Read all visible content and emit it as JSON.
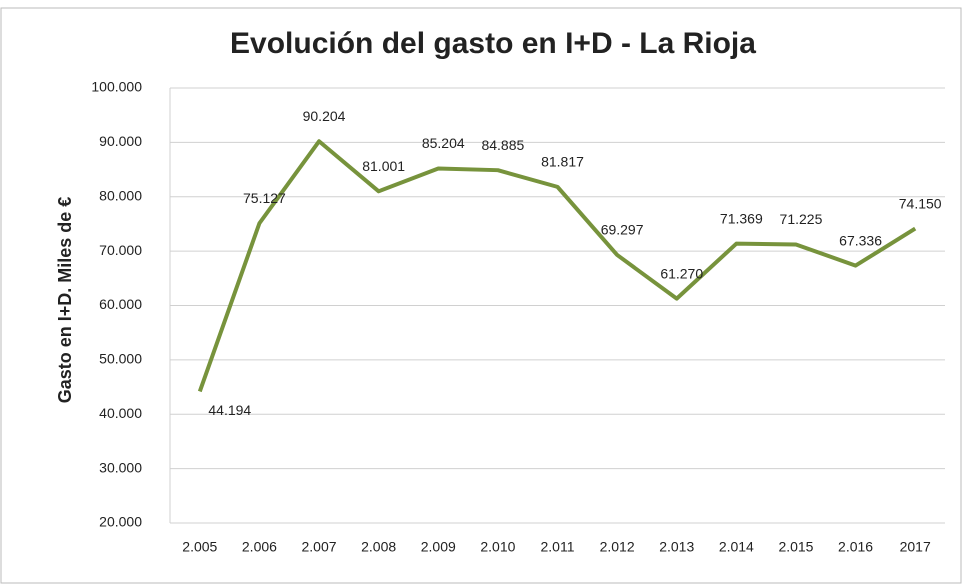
{
  "chart_data": {
    "type": "line",
    "title": "Evolución del gasto en I+D - La Rioja",
    "y_label": "Gasto en I+D. Miles de €",
    "categories": [
      "2.005",
      "2.006",
      "2.007",
      "2.008",
      "2.009",
      "2.010",
      "2.011",
      "2.012",
      "2.013",
      "2.014",
      "2.015",
      "2.016",
      "2017"
    ],
    "values": [
      44194,
      75127,
      90204,
      81001,
      85204,
      84885,
      81817,
      69297,
      61270,
      71369,
      71225,
      67336,
      74150
    ],
    "value_labels": [
      "44.194",
      "75.127",
      "90.204",
      "81.001",
      "85.204",
      "84.885",
      "81.817",
      "69.297",
      "61.270",
      "71.369",
      "71.225",
      "67.336",
      "74.150"
    ],
    "color": "#77933c",
    "ylim": [
      20000,
      100000
    ],
    "yticks": [
      {
        "value": 20000,
        "label": "20.000"
      },
      {
        "value": 30000,
        "label": "30.000"
      },
      {
        "value": 40000,
        "label": "40.000"
      },
      {
        "value": 50000,
        "label": "50.000"
      },
      {
        "value": 60000,
        "label": "60.000"
      },
      {
        "value": 70000,
        "label": "70.000"
      },
      {
        "value": 80000,
        "label": "80.000"
      },
      {
        "value": 90000,
        "label": "90.000"
      },
      {
        "value": 100000,
        "label": "100.000"
      }
    ],
    "grid": true
  }
}
